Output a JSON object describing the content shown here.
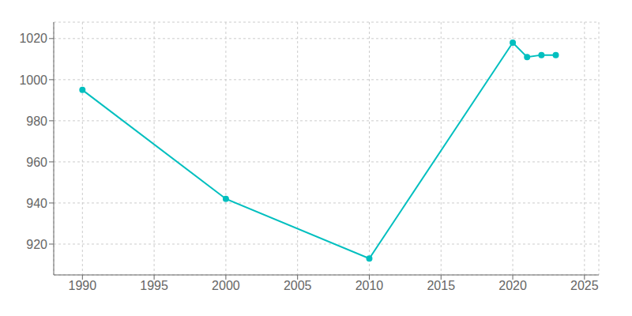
{
  "chart_data": {
    "type": "line",
    "x": [
      1990,
      2000,
      2010,
      2020,
      2021,
      2022,
      2023
    ],
    "values": [
      995,
      942,
      913,
      1018,
      1011,
      1012,
      1012
    ],
    "color": "#00BFBF",
    "marker": "o",
    "xlim": [
      1988,
      2026
    ],
    "ylim": [
      905,
      1028
    ],
    "xticks": [
      1990,
      1995,
      2000,
      2005,
      2010,
      2015,
      2020,
      2025
    ],
    "yticks": [
      920,
      940,
      960,
      980,
      1000,
      1020
    ],
    "grid": true
  }
}
